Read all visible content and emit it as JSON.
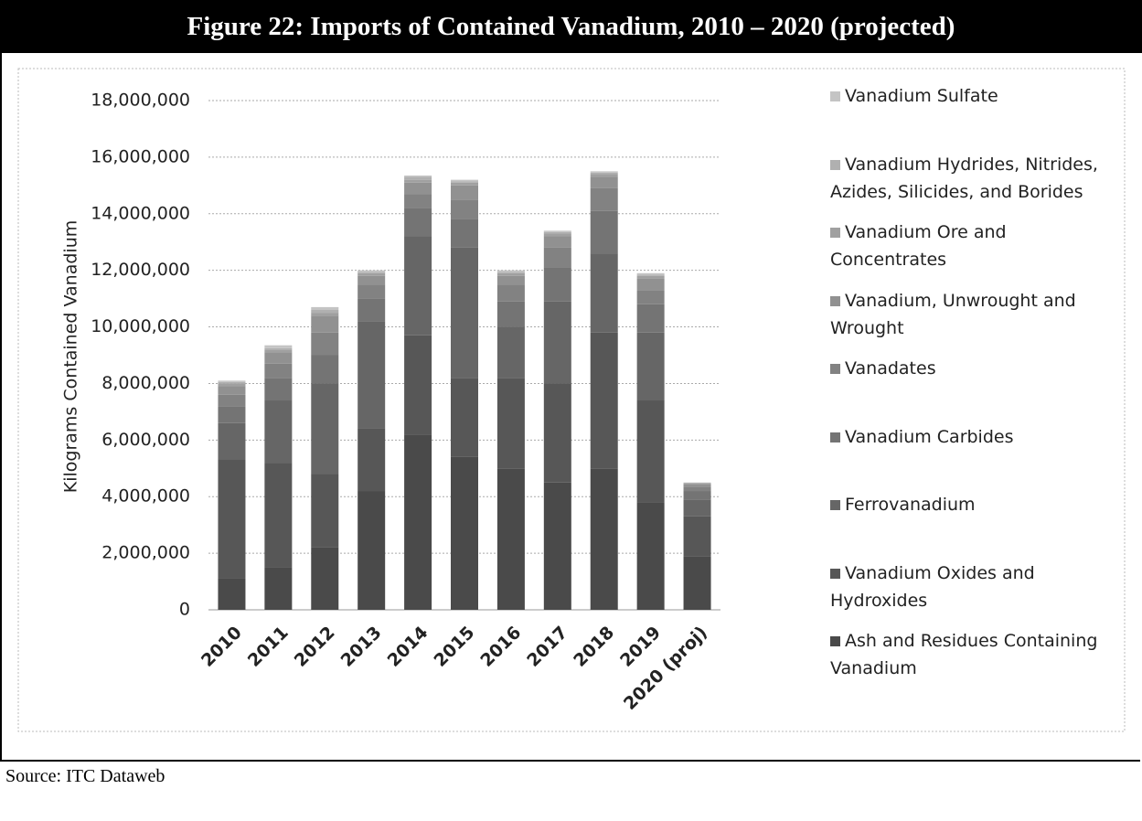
{
  "chart_data": {
    "type": "stacked_bar",
    "title": "Figure 22: Imports of Contained Vanadium, 2010 – 2020 (projected)",
    "y_label": "Kilograms Contained Vanadium",
    "source": "Source: ITC Dataweb",
    "categories": [
      "2010",
      "2011",
      "2012",
      "2013",
      "2014",
      "2015",
      "2016",
      "2017",
      "2018",
      "2019",
      "2020 (proj)"
    ],
    "series": [
      {
        "name": "Ash and Residues Containing Vanadium",
        "color": "#4a4a4a",
        "values": [
          1100000,
          1500000,
          2200000,
          4200000,
          6200000,
          5400000,
          5000000,
          4500000,
          5000000,
          3800000,
          1900000
        ]
      },
      {
        "name": "Vanadium Oxides and Hydroxides",
        "color": "#575757",
        "values": [
          4200000,
          3700000,
          2600000,
          2200000,
          3500000,
          2800000,
          3200000,
          3500000,
          4800000,
          3600000,
          1400000
        ]
      },
      {
        "name": "Ferrovanadium",
        "color": "#666666",
        "values": [
          1300000,
          2200000,
          3200000,
          3800000,
          3500000,
          4600000,
          1800000,
          2900000,
          2800000,
          2400000,
          600000
        ]
      },
      {
        "name": "Vanadium Carbides",
        "color": "#747474",
        "values": [
          600000,
          800000,
          1000000,
          800000,
          1000000,
          1000000,
          900000,
          1200000,
          1500000,
          1000000,
          300000
        ]
      },
      {
        "name": "Vanadates",
        "color": "#828282",
        "values": [
          400000,
          500000,
          800000,
          500000,
          500000,
          700000,
          600000,
          700000,
          800000,
          500000,
          150000
        ]
      },
      {
        "name": "Vanadium, Unwrought and Wrought",
        "color": "#919191",
        "values": [
          300000,
          400000,
          600000,
          300000,
          400000,
          500000,
          300000,
          400000,
          400000,
          400000,
          100000
        ]
      },
      {
        "name": "Vanadium Ore and Concentrates",
        "color": "#a0a0a0",
        "values": [
          100000,
          100000,
          100000,
          100000,
          100000,
          100000,
          100000,
          100000,
          100000,
          100000,
          30000
        ]
      },
      {
        "name": "Vanadium Hydrides, Nitrides, Azides, Silicides, and Borides",
        "color": "#b0b0b0",
        "values": [
          50000,
          50000,
          100000,
          50000,
          100000,
          50000,
          50000,
          50000,
          50000,
          50000,
          10000
        ]
      },
      {
        "name": "Vanadium Sulfate",
        "color": "#c4c4c4",
        "values": [
          50000,
          100000,
          100000,
          50000,
          50000,
          50000,
          50000,
          50000,
          50000,
          50000,
          10000
        ]
      }
    ],
    "ylim": [
      0,
      18000000
    ],
    "yticks": [
      0,
      {
        "value": 2000000,
        "label": "2,000,000"
      },
      {
        "value": 4000000,
        "label": "4,000,000"
      },
      {
        "value": 6000000,
        "label": "6,000,000"
      },
      {
        "value": 8000000,
        "label": "8,000,000"
      },
      {
        "value": 10000000,
        "label": "10,000,000"
      },
      {
        "value": 12000000,
        "label": "12,000,000"
      },
      {
        "value": 14000000,
        "label": "14,000,000"
      },
      {
        "value": 16000000,
        "label": "16,000,000"
      },
      {
        "value": 18000000,
        "label": "18,000,000"
      }
    ],
    "grid": true
  }
}
